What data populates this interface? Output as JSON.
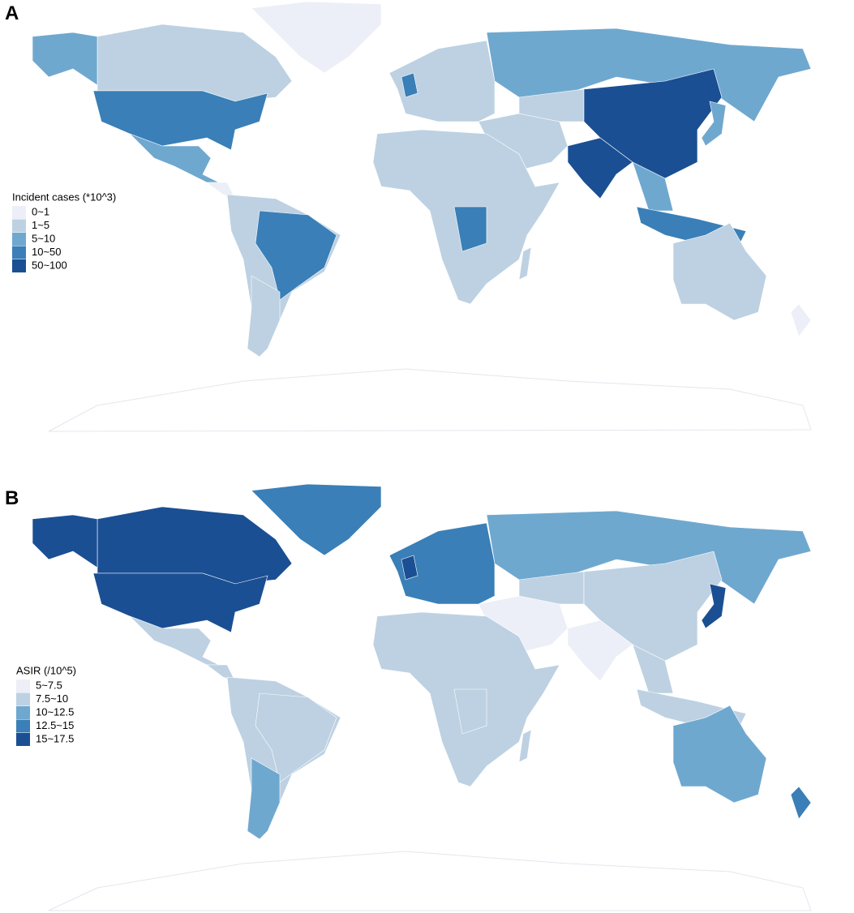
{
  "panels": [
    {
      "label": "A",
      "legend": {
        "title": "Incident cases (*10^3)",
        "items": [
          {
            "label": "0~1",
            "color": "#eceff7"
          },
          {
            "label": "1~5",
            "color": "#bdd1e2"
          },
          {
            "label": "5~10",
            "color": "#6fa8cf"
          },
          {
            "label": "10~50",
            "color": "#3a7fb7"
          },
          {
            "label": "50~100",
            "color": "#1b4f93"
          }
        ]
      }
    },
    {
      "label": "B",
      "legend": {
        "title": "ASIR (/10^5)",
        "items": [
          {
            "label": "5~7.5",
            "color": "#eceff7"
          },
          {
            "label": "7.5~10",
            "color": "#bdd1e2"
          },
          {
            "label": "10~12.5",
            "color": "#6fa8cf"
          },
          {
            "label": "12.5~15",
            "color": "#3a7fb7"
          },
          {
            "label": "15~17.5",
            "color": "#1b4f93"
          }
        ]
      }
    }
  ]
}
